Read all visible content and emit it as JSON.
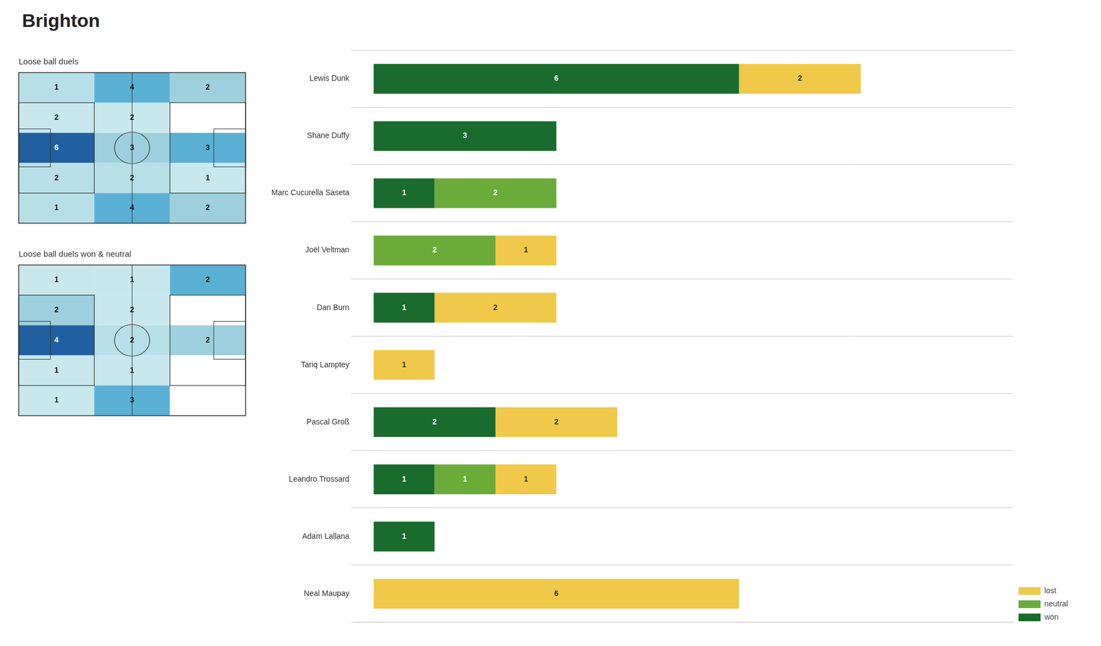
{
  "title": "Brighton",
  "chart_data": [
    {
      "type": "heatmap",
      "title": "Loose ball duels",
      "values": [
        [
          1,
          4,
          2
        ],
        [
          2,
          2,
          0
        ],
        [
          6,
          3,
          3
        ],
        [
          2,
          2,
          1
        ],
        [
          1,
          4,
          2
        ]
      ],
      "value_labels": [
        [
          "1",
          "4",
          "2"
        ],
        [
          "2",
          "2",
          null
        ],
        [
          "6",
          "3",
          "3"
        ],
        [
          "2",
          "2",
          "1"
        ],
        [
          "1",
          "4",
          "2"
        ]
      ],
      "colors": [
        [
          "#b8dfe8",
          "#5ab0d4",
          "#9dd0dc"
        ],
        [
          "#c8e8ee",
          "#c8e8ee",
          "#ffffff"
        ],
        [
          "#2060a0",
          "#9dd0dc",
          "#5ab0d4"
        ],
        [
          "#b8dfe8",
          "#b8dfe8",
          "#c8e8ee"
        ],
        [
          "#b8dfe8",
          "#5ab0d4",
          "#9dd0dc"
        ]
      ],
      "tick_labels": false
    },
    {
      "type": "heatmap",
      "title": "Loose ball duels won & neutral",
      "values": [
        [
          1,
          1,
          2
        ],
        [
          2,
          2,
          0
        ],
        [
          4,
          2,
          2
        ],
        [
          1,
          1,
          0
        ],
        [
          1,
          3,
          0
        ]
      ],
      "value_labels": [
        [
          "1",
          "1",
          "2"
        ],
        [
          "2",
          "2",
          null
        ],
        [
          "4",
          "2",
          "2"
        ],
        [
          "1",
          "1",
          null
        ],
        [
          "1",
          "3",
          null
        ]
      ],
      "colors": [
        [
          "#c8e8ee",
          "#c8e8ee",
          "#5ab0d4"
        ],
        [
          "#9dd0dc",
          "#c8e8ee",
          "#ffffff"
        ],
        [
          "#2060a0",
          "#b8dfe8",
          "#9dd0dc"
        ],
        [
          "#c8e8ee",
          "#c8e8ee",
          "#ffffff"
        ],
        [
          "#c8e8ee",
          "#5ab0d4",
          "#ffffff"
        ]
      ],
      "tick_labels": false
    },
    {
      "type": "bar",
      "orientation": "horizontal",
      "stacked": true,
      "categories": [
        "Lewis Dunk",
        "Shane Duffy",
        "Marc Cucurella Saseta",
        "Joël Veltman",
        "Dan Burn",
        "Tariq Lamptey",
        "Pascal Groß",
        "Leandro Trossard",
        "Adam Lallana",
        "Neal Maupay"
      ],
      "series": [
        {
          "name": "won",
          "color": "#1a6b2e",
          "values": [
            6,
            3,
            1,
            0,
            1,
            0,
            2,
            1,
            1,
            0
          ],
          "value_labels": [
            "6",
            "3",
            "1",
            null,
            "1",
            null,
            "2",
            "1",
            "1",
            null
          ]
        },
        {
          "name": "neutral",
          "color": "#6aab3a",
          "values": [
            0,
            0,
            2,
            2,
            0,
            0,
            0,
            1,
            0,
            0
          ],
          "value_labels": [
            null,
            null,
            "2",
            "2",
            null,
            null,
            null,
            "1",
            null,
            null
          ]
        },
        {
          "name": "lost",
          "color": "#f0c84a",
          "values": [
            2,
            0,
            0,
            1,
            2,
            1,
            2,
            1,
            0,
            6
          ],
          "value_labels": [
            "2",
            null,
            null,
            "1",
            "2",
            "1",
            "2",
            "1",
            null,
            "6"
          ]
        }
      ],
      "xlim": [
        -0.3,
        10.5
      ],
      "tick_labels": "y",
      "grid": true,
      "legend": "lower right"
    }
  ]
}
